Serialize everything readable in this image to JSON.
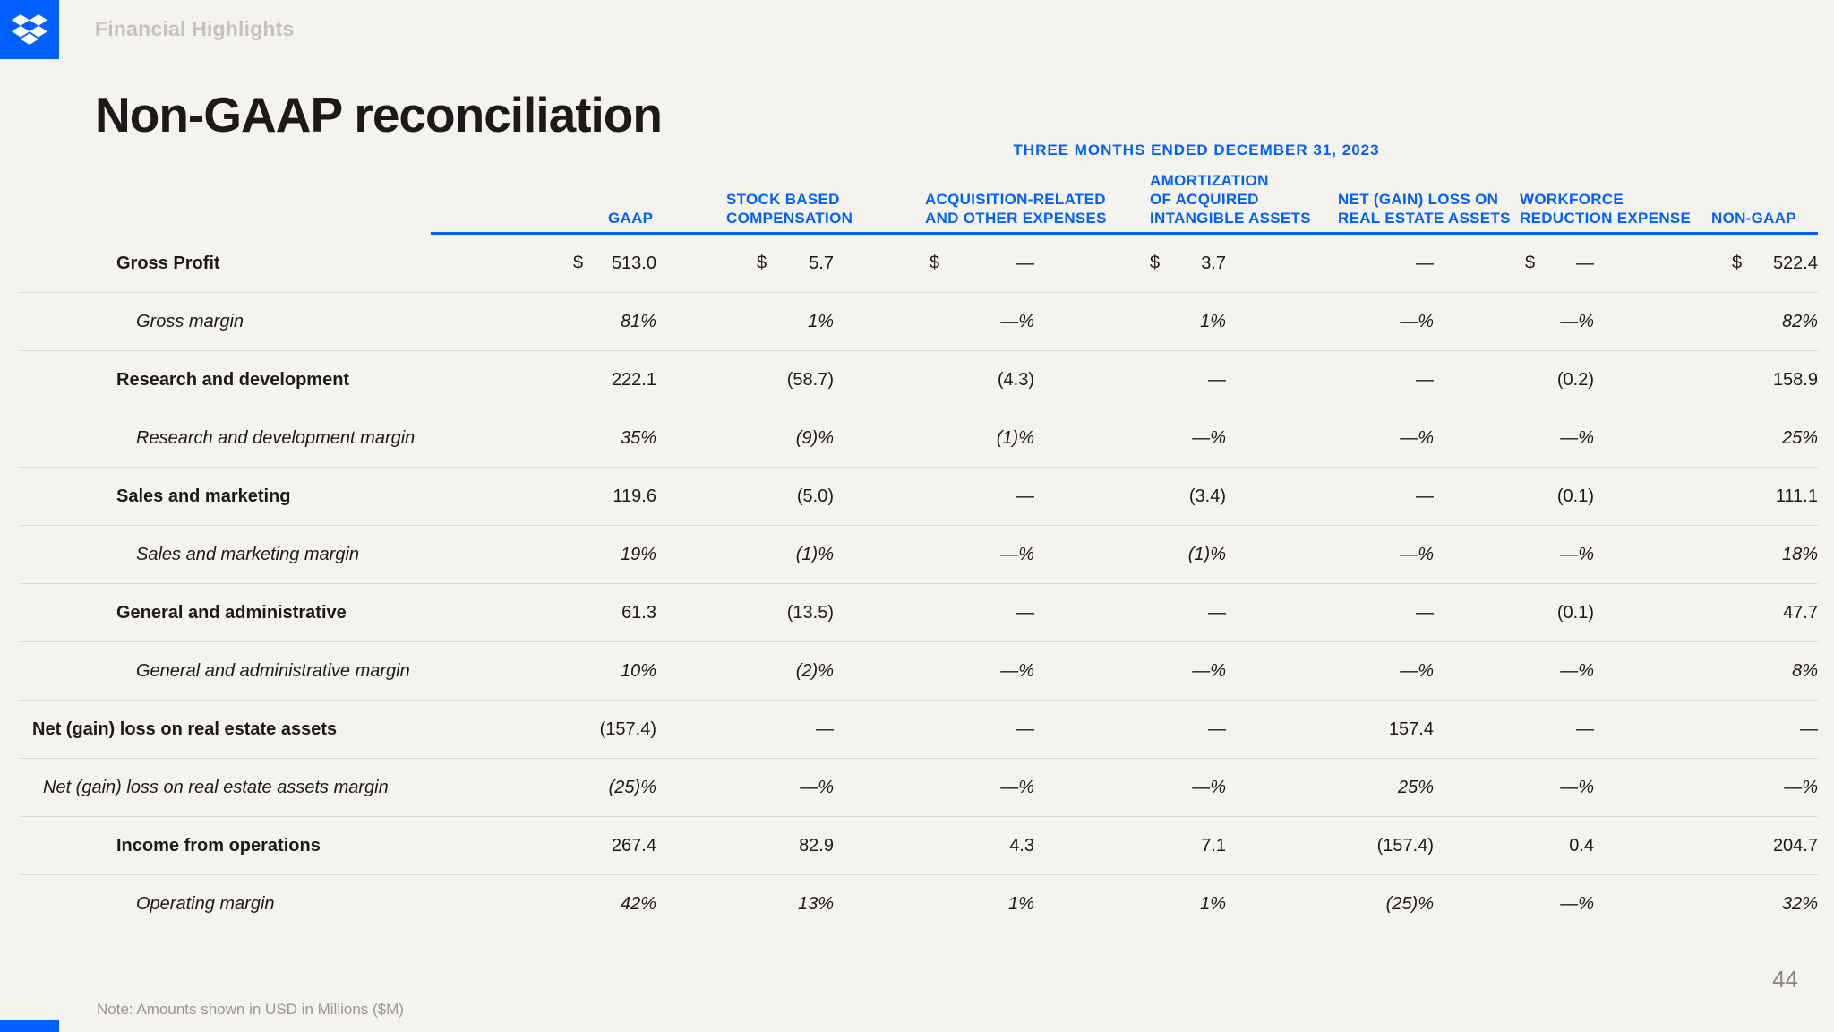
{
  "brand": {
    "logo": "dropbox-icon",
    "accent_color": "#0061FE",
    "background_color": "#F5F3EF"
  },
  "header": {
    "eyebrow": "Financial Highlights"
  },
  "title": "Non-GAAP reconciliation",
  "table": {
    "period_header": "THREE MONTHS ENDED DECEMBER 31, 2023",
    "columns": [
      "GAAP",
      "STOCK BASED\nCOMPENSATION",
      "ACQUISITION-RELATED\nAND OTHER EXPENSES",
      "AMORTIZATION\nOF ACQUIRED\nINTANGIBLE ASSETS",
      "NET (GAIN) LOSS ON\nREAL ESTATE ASSETS",
      "WORKFORCE\nREDUCTION EXPENSE",
      "NON-GAAP"
    ],
    "rows": [
      {
        "label": "Gross Profit",
        "type": "metric",
        "prefixes": [
          "$",
          "$",
          "$",
          "$",
          "",
          "$",
          "$"
        ],
        "values": [
          "513.0",
          "5.7",
          "—",
          "3.7",
          "—",
          "—",
          "522.4"
        ]
      },
      {
        "label": "Gross margin",
        "type": "margin",
        "values": [
          "81%",
          "1%",
          "—%",
          "1%",
          "—%",
          "—%",
          "82%"
        ]
      },
      {
        "label": "Research and development",
        "type": "metric",
        "values": [
          "222.1",
          "(58.7)",
          "(4.3)",
          "—",
          "—",
          "(0.2)",
          "158.9"
        ]
      },
      {
        "label": "Research and development margin",
        "type": "margin",
        "values": [
          "35%",
          "(9)%",
          "(1)%",
          "—%",
          "—%",
          "—%",
          "25%"
        ]
      },
      {
        "label": "Sales and marketing",
        "type": "metric",
        "values": [
          "119.6",
          "(5.0)",
          "—",
          "(3.4)",
          "—",
          "(0.1)",
          "111.1"
        ]
      },
      {
        "label": "Sales and marketing margin",
        "type": "margin",
        "values": [
          "19%",
          "(1)%",
          "—%",
          "(1)%",
          "—%",
          "—%",
          "18%"
        ]
      },
      {
        "label": "General and administrative",
        "type": "metric",
        "values": [
          "61.3",
          "(13.5)",
          "—",
          "—",
          "—",
          "(0.1)",
          "47.7"
        ]
      },
      {
        "label": "General and administrative margin",
        "type": "margin",
        "values": [
          "10%",
          "(2)%",
          "—%",
          "—%",
          "—%",
          "—%",
          "8%"
        ]
      },
      {
        "label": "Net (gain) loss on real estate assets",
        "type": "metric-flush",
        "values": [
          "(157.4)",
          "—",
          "—",
          "—",
          "157.4",
          "—",
          "—"
        ]
      },
      {
        "label": "Net (gain) loss on real estate assets margin",
        "type": "margin-flush",
        "values": [
          "(25)%",
          "—%",
          "—%",
          "—%",
          "25%",
          "—%",
          "—%"
        ]
      },
      {
        "label": "Income from operations",
        "type": "metric",
        "values": [
          "267.4",
          "82.9",
          "4.3",
          "7.1",
          "(157.4)",
          "0.4",
          "204.7"
        ]
      },
      {
        "label": "Operating margin",
        "type": "margin",
        "values": [
          "42%",
          "13%",
          "1%",
          "1%",
          "(25)%",
          "—%",
          "32%"
        ]
      }
    ]
  },
  "footer": {
    "note": "Note: Amounts shown in USD in Millions ($M)",
    "page": "44"
  }
}
